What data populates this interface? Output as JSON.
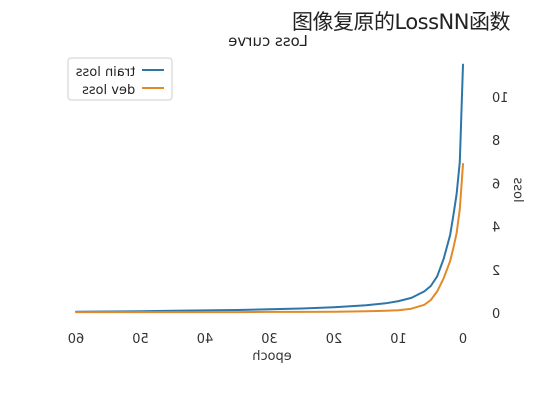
{
  "caption": "图像复原的LossNN函数",
  "chart_data": {
    "type": "line",
    "title": "Loss curve",
    "xlabel": "epoch",
    "ylabel": "loss",
    "x_reversed": true,
    "text_mirrored": true,
    "xlim": [
      0,
      61
    ],
    "ylim": [
      0,
      11.3
    ],
    "xticks": [
      0,
      10,
      20,
      30,
      40,
      50,
      60
    ],
    "yticks": [
      0,
      2,
      4,
      6,
      8,
      10
    ],
    "legend_position": "top-left",
    "x": [
      0,
      0.5,
      1,
      1.5,
      2,
      3,
      4,
      5,
      6,
      8,
      10,
      12,
      15,
      20,
      25,
      30,
      35,
      40,
      45,
      50,
      55,
      60
    ],
    "series": [
      {
        "name": "train loss",
        "color": "#2e75a8",
        "values": [
          11.5,
          7.0,
          5.5,
          4.5,
          3.6,
          2.5,
          1.7,
          1.25,
          1.0,
          0.7,
          0.55,
          0.45,
          0.36,
          0.27,
          0.21,
          0.17,
          0.14,
          0.12,
          0.1,
          0.08,
          0.07,
          0.06
        ]
      },
      {
        "name": "dev loss",
        "color": "#e3892a",
        "values": [
          6.9,
          4.8,
          3.7,
          3.0,
          2.4,
          1.6,
          1.0,
          0.6,
          0.38,
          0.2,
          0.13,
          0.1,
          0.08,
          0.06,
          0.05,
          0.05,
          0.04,
          0.04,
          0.04,
          0.04,
          0.04,
          0.04
        ]
      }
    ]
  }
}
